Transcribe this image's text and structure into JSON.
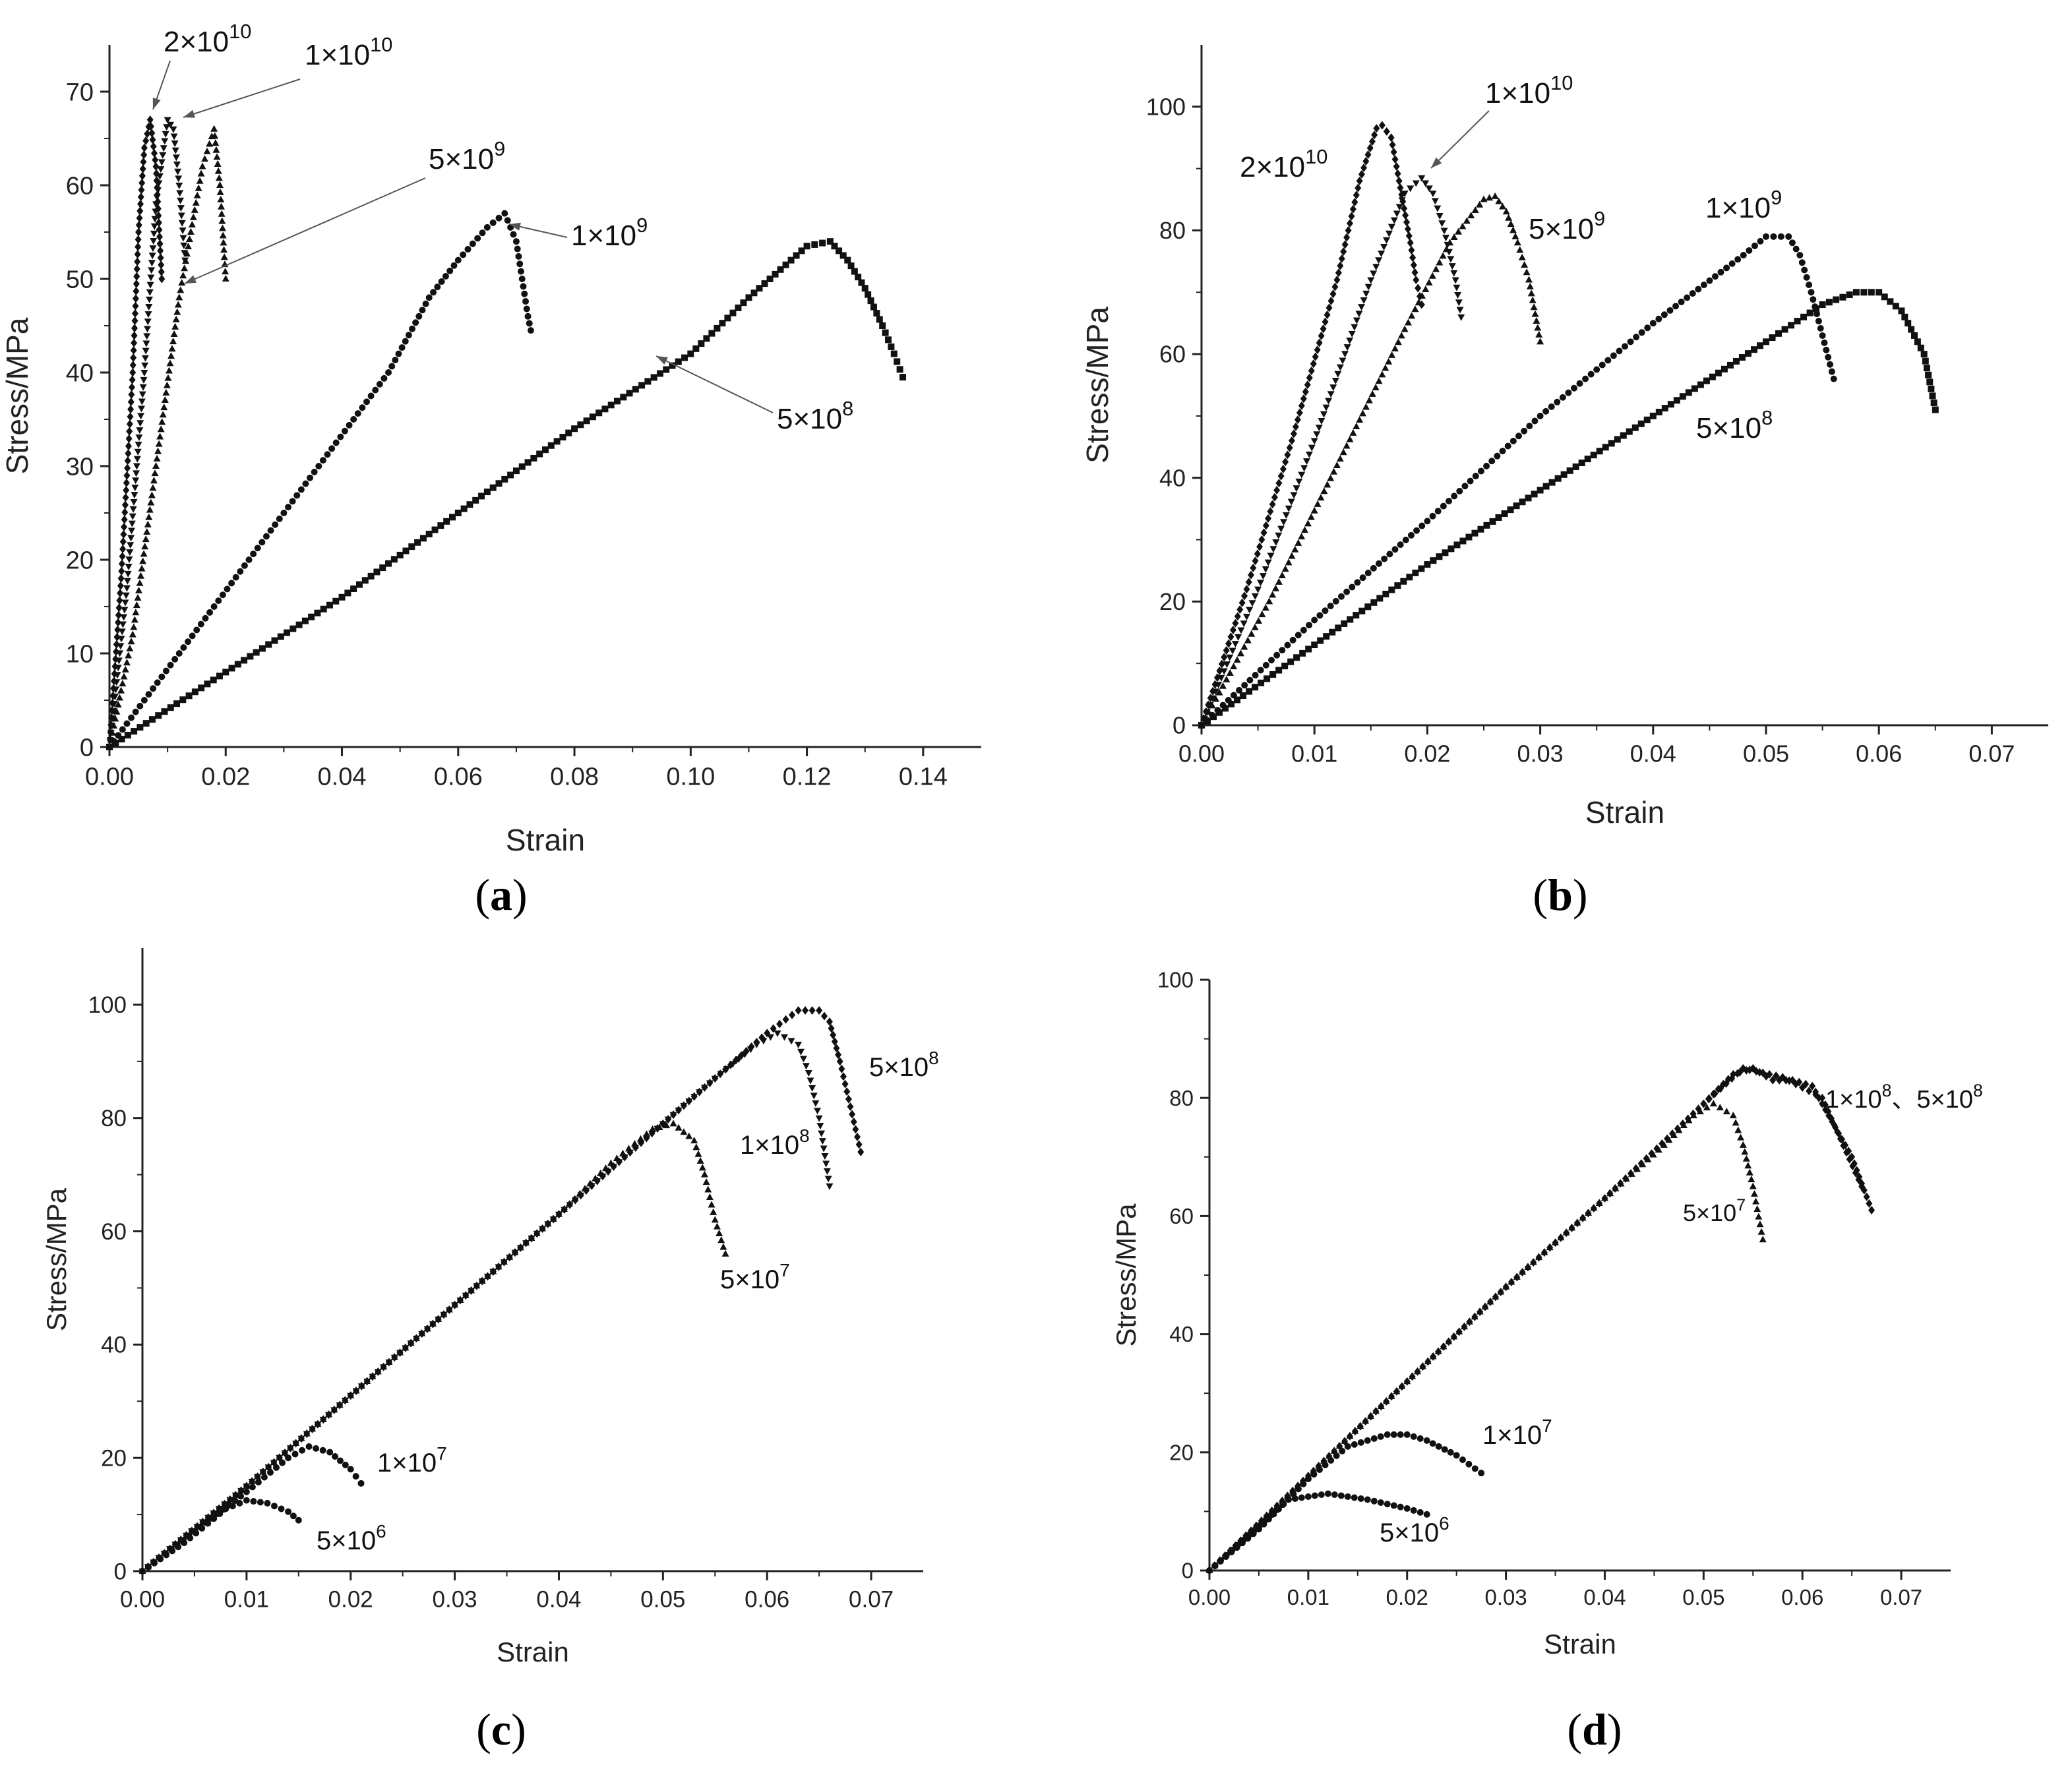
{
  "colors": {
    "axis": "#222222",
    "marker": "#111111",
    "leader": "#555555",
    "background": "#ffffff"
  },
  "chart_data": [
    {
      "id": "a",
      "type": "scatter",
      "caption": "a",
      "xlabel": "Strain",
      "ylabel": "Stress/MPa",
      "xlim": [
        0,
        0.15
      ],
      "ylim": [
        0,
        75
      ],
      "xticks": [
        "0.00",
        "0.02",
        "0.04",
        "0.06",
        "0.08",
        "0.10",
        "0.12",
        "0.14"
      ],
      "yticks": [
        "0",
        "10",
        "20",
        "30",
        "40",
        "50",
        "60",
        "70"
      ],
      "series": [
        {
          "name": "2×10^10",
          "marker": "diamond",
          "points": [
            [
              0,
              0
            ],
            [
              0.002,
              18
            ],
            [
              0.004,
              40
            ],
            [
              0.005,
              55
            ],
            [
              0.006,
              64
            ],
            [
              0.007,
              67
            ],
            [
              0.008,
              62
            ],
            [
              0.009,
              50
            ]
          ]
        },
        {
          "name": "1×10^10",
          "marker": "triangle-down",
          "points": [
            [
              0,
              0
            ],
            [
              0.003,
              17
            ],
            [
              0.006,
              40
            ],
            [
              0.008,
              58
            ],
            [
              0.01,
              67
            ],
            [
              0.011,
              66
            ],
            [
              0.012,
              60
            ],
            [
              0.013,
              52
            ]
          ]
        },
        {
          "name": "5×10^9",
          "marker": "triangle",
          "points": [
            [
              0,
              0
            ],
            [
              0.004,
              12
            ],
            [
              0.008,
              30
            ],
            [
              0.012,
              48
            ],
            [
              0.016,
              62
            ],
            [
              0.018,
              66
            ],
            [
              0.019,
              60
            ],
            [
              0.02,
              50
            ]
          ]
        },
        {
          "name": "1×10^9",
          "marker": "circle",
          "points": [
            [
              0,
              0
            ],
            [
              0.012,
              10
            ],
            [
              0.024,
              20
            ],
            [
              0.036,
              30
            ],
            [
              0.048,
              40
            ],
            [
              0.055,
              48
            ],
            [
              0.06,
              52
            ],
            [
              0.065,
              55.5
            ],
            [
              0.068,
              57
            ],
            [
              0.069,
              55.5
            ],
            [
              0.07,
              54
            ],
            [
              0.071,
              50
            ],
            [
              0.072,
              46
            ],
            [
              0.0725,
              44.5
            ]
          ]
        },
        {
          "name": "5×10^8",
          "marker": "square",
          "points": [
            [
              0,
              0
            ],
            [
              0.02,
              8
            ],
            [
              0.04,
              16
            ],
            [
              0.06,
              25
            ],
            [
              0.08,
              34
            ],
            [
              0.1,
              42
            ],
            [
              0.11,
              48
            ],
            [
              0.12,
              53.5
            ],
            [
              0.124,
              54
            ],
            [
              0.127,
              52
            ],
            [
              0.13,
              49
            ],
            [
              0.133,
              45
            ],
            [
              0.135,
              42
            ],
            [
              0.1365,
              39.5
            ]
          ]
        }
      ],
      "annotations": [
        {
          "base": "2×10",
          "exp": "10"
        },
        {
          "base": "1×10",
          "exp": "10"
        },
        {
          "base": "5×10",
          "exp": "9"
        },
        {
          "base": "1×10",
          "exp": "9"
        },
        {
          "base": "5×10",
          "exp": "8"
        }
      ]
    },
    {
      "id": "b",
      "type": "scatter",
      "caption": "b",
      "xlabel": "Strain",
      "ylabel": "Stress/MPa",
      "xlim": [
        0,
        0.075
      ],
      "ylim": [
        0,
        110
      ],
      "xticks": [
        "0.00",
        "0.01",
        "0.02",
        "0.03",
        "0.04",
        "0.05",
        "0.06",
        "0.07"
      ],
      "yticks": [
        "0",
        "20",
        "40",
        "60",
        "80",
        "100"
      ],
      "series": [
        {
          "name": "2×10^10",
          "marker": "diamond",
          "points": [
            [
              0,
              0
            ],
            [
              0.004,
              22
            ],
            [
              0.008,
              46
            ],
            [
              0.012,
              72
            ],
            [
              0.014,
              88
            ],
            [
              0.0155,
              96.5
            ],
            [
              0.016,
              97
            ],
            [
              0.0168,
              95
            ],
            [
              0.0175,
              88
            ],
            [
              0.0185,
              78
            ],
            [
              0.019,
              72
            ],
            [
              0.0195,
              68
            ]
          ]
        },
        {
          "name": "1×10^10",
          "marker": "triangle-down",
          "points": [
            [
              0,
              0
            ],
            [
              0.005,
              22
            ],
            [
              0.01,
              46
            ],
            [
              0.015,
              72
            ],
            [
              0.018,
              86
            ],
            [
              0.0195,
              88.5
            ],
            [
              0.0205,
              86
            ],
            [
              0.0215,
              80
            ],
            [
              0.0225,
              72
            ],
            [
              0.023,
              66
            ]
          ]
        },
        {
          "name": "5×10^9",
          "marker": "triangle",
          "points": [
            [
              0,
              0
            ],
            [
              0.006,
              20
            ],
            [
              0.012,
              42
            ],
            [
              0.018,
              64
            ],
            [
              0.022,
              78
            ],
            [
              0.025,
              85
            ],
            [
              0.026,
              85.5
            ],
            [
              0.027,
              83
            ],
            [
              0.028,
              78
            ],
            [
              0.029,
              72
            ],
            [
              0.03,
              62
            ]
          ]
        },
        {
          "name": "1×10^9",
          "marker": "circle",
          "points": [
            [
              0,
              0
            ],
            [
              0.01,
              17
            ],
            [
              0.02,
              33
            ],
            [
              0.03,
              50
            ],
            [
              0.04,
              65
            ],
            [
              0.048,
              76
            ],
            [
              0.05,
              79
            ],
            [
              0.052,
              79
            ],
            [
              0.053,
              76
            ],
            [
              0.054,
              70
            ],
            [
              0.055,
              63
            ],
            [
              0.056,
              56
            ]
          ]
        },
        {
          "name": "5×10^8",
          "marker": "square",
          "points": [
            [
              0,
              0
            ],
            [
              0.01,
              13
            ],
            [
              0.02,
              26
            ],
            [
              0.03,
              38
            ],
            [
              0.04,
              50
            ],
            [
              0.05,
              62
            ],
            [
              0.055,
              68
            ],
            [
              0.058,
              70
            ],
            [
              0.06,
              70
            ],
            [
              0.062,
              67
            ],
            [
              0.064,
              60
            ],
            [
              0.065,
              51
            ]
          ]
        }
      ],
      "annotations": [
        {
          "base": "2×10",
          "exp": "10"
        },
        {
          "base": "1×10",
          "exp": "10"
        },
        {
          "base": "5×10",
          "exp": "9"
        },
        {
          "base": "1×10",
          "exp": "9"
        },
        {
          "base": "5×10",
          "exp": "8"
        }
      ]
    },
    {
      "id": "c",
      "type": "scatter",
      "caption": "c",
      "xlabel": "Strain",
      "ylabel": "Stress/MPa",
      "xlim": [
        0,
        0.075
      ],
      "ylim": [
        0,
        110
      ],
      "xticks": [
        "0.00",
        "0.01",
        "0.02",
        "0.03",
        "0.04",
        "0.05",
        "0.06",
        "0.07"
      ],
      "yticks": [
        "0",
        "20",
        "40",
        "60",
        "80",
        "100"
      ],
      "series": [
        {
          "name": "5×10^6",
          "marker": "circle",
          "points": [
            [
              0,
              0
            ],
            [
              0.004,
              5
            ],
            [
              0.008,
              11
            ],
            [
              0.01,
              12.5
            ],
            [
              0.012,
              12
            ],
            [
              0.014,
              10.5
            ],
            [
              0.015,
              9
            ]
          ]
        },
        {
          "name": "1×10^7",
          "marker": "circle",
          "points": [
            [
              0,
              0
            ],
            [
              0.005,
              7
            ],
            [
              0.01,
              14
            ],
            [
              0.014,
              20
            ],
            [
              0.016,
              22
            ],
            [
              0.018,
              21
            ],
            [
              0.02,
              18
            ],
            [
              0.021,
              15.5
            ]
          ]
        },
        {
          "name": "5×10^7",
          "marker": "triangle",
          "points": [
            [
              0,
              0
            ],
            [
              0.01,
              15
            ],
            [
              0.02,
              31
            ],
            [
              0.03,
              47
            ],
            [
              0.04,
              63
            ],
            [
              0.045,
              72
            ],
            [
              0.049,
              78
            ],
            [
              0.051,
              79
            ],
            [
              0.053,
              76
            ],
            [
              0.054,
              70
            ],
            [
              0.055,
              62
            ],
            [
              0.056,
              56
            ]
          ]
        },
        {
          "name": "1×10^8",
          "marker": "triangle-down",
          "points": [
            [
              0,
              0
            ],
            [
              0.01,
              15
            ],
            [
              0.02,
              31
            ],
            [
              0.03,
              47
            ],
            [
              0.04,
              63
            ],
            [
              0.05,
              79
            ],
            [
              0.055,
              87
            ],
            [
              0.059,
              93
            ],
            [
              0.061,
              95
            ],
            [
              0.063,
              93
            ],
            [
              0.064,
              88
            ],
            [
              0.065,
              80
            ],
            [
              0.066,
              68
            ]
          ]
        },
        {
          "name": "5×10^8",
          "marker": "diamond",
          "points": [
            [
              0,
              0
            ],
            [
              0.01,
              15
            ],
            [
              0.02,
              31
            ],
            [
              0.03,
              47
            ],
            [
              0.04,
              63
            ],
            [
              0.05,
              79
            ],
            [
              0.055,
              87
            ],
            [
              0.06,
              95
            ],
            [
              0.063,
              99
            ],
            [
              0.065,
              99
            ],
            [
              0.066,
              97
            ],
            [
              0.067,
              90
            ],
            [
              0.068,
              82
            ],
            [
              0.069,
              74
            ]
          ]
        }
      ],
      "annotations": [
        {
          "base": "5×10",
          "exp": "8"
        },
        {
          "base": "1×10",
          "exp": "8"
        },
        {
          "base": "5×10",
          "exp": "7"
        },
        {
          "base": "1×10",
          "exp": "7"
        },
        {
          "base": "5×10",
          "exp": "6"
        }
      ]
    },
    {
      "id": "d",
      "type": "scatter",
      "caption": "d",
      "xlabel": "Strain",
      "ylabel": "Stress/MPa",
      "xlim": [
        0,
        0.075
      ],
      "ylim": [
        0,
        100
      ],
      "xticks": [
        "0.00",
        "0.01",
        "0.02",
        "0.03",
        "0.04",
        "0.05",
        "0.06",
        "0.07"
      ],
      "yticks": [
        "0",
        "20",
        "40",
        "60",
        "80",
        "100"
      ],
      "series": [
        {
          "name": "5×10^6",
          "marker": "circle",
          "points": [
            [
              0,
              0
            ],
            [
              0.004,
              6
            ],
            [
              0.008,
              12
            ],
            [
              0.012,
              13
            ],
            [
              0.016,
              12
            ],
            [
              0.02,
              10.5
            ],
            [
              0.022,
              9.5
            ]
          ]
        },
        {
          "name": "1×10^7",
          "marker": "circle",
          "points": [
            [
              0,
              0
            ],
            [
              0.005,
              7
            ],
            [
              0.01,
              15.5
            ],
            [
              0.014,
              21
            ],
            [
              0.018,
              23
            ],
            [
              0.02,
              23
            ],
            [
              0.022,
              22
            ],
            [
              0.025,
              19.5
            ],
            [
              0.0275,
              16.5
            ]
          ]
        },
        {
          "name": "5×10^7",
          "marker": "triangle",
          "points": [
            [
              0,
              0
            ],
            [
              0.01,
              16
            ],
            [
              0.02,
              32
            ],
            [
              0.03,
              48
            ],
            [
              0.04,
              63
            ],
            [
              0.046,
              72
            ],
            [
              0.049,
              77
            ],
            [
              0.051,
              79
            ],
            [
              0.053,
              77
            ],
            [
              0.054,
              72
            ],
            [
              0.055,
              65
            ],
            [
              0.056,
              56
            ]
          ]
        },
        {
          "name": "1×10^8",
          "marker": "diamond",
          "points": [
            [
              0,
              0
            ],
            [
              0.01,
              16
            ],
            [
              0.02,
              32
            ],
            [
              0.03,
              48
            ],
            [
              0.04,
              63
            ],
            [
              0.05,
              79
            ],
            [
              0.053,
              84
            ],
            [
              0.055,
              85
            ],
            [
              0.057,
              83
            ],
            [
              0.059,
              83
            ],
            [
              0.061,
              82
            ],
            [
              0.063,
              76
            ],
            [
              0.065,
              70
            ],
            [
              0.067,
              61
            ]
          ]
        },
        {
          "name": "5×10^8",
          "marker": "diamond",
          "points": [
            [
              0.05,
              79
            ],
            [
              0.054,
              85
            ],
            [
              0.058,
              83.5
            ],
            [
              0.062,
              80
            ],
            [
              0.066,
              65
            ]
          ]
        }
      ],
      "annotations": [
        {
          "base": "1×10",
          "exp": "8",
          "extra": "、5×10",
          "extra_exp": "8"
        },
        {
          "base": "5×10",
          "exp": "7"
        },
        {
          "base": "1×10",
          "exp": "7"
        },
        {
          "base": "5×10",
          "exp": "6"
        }
      ]
    }
  ]
}
